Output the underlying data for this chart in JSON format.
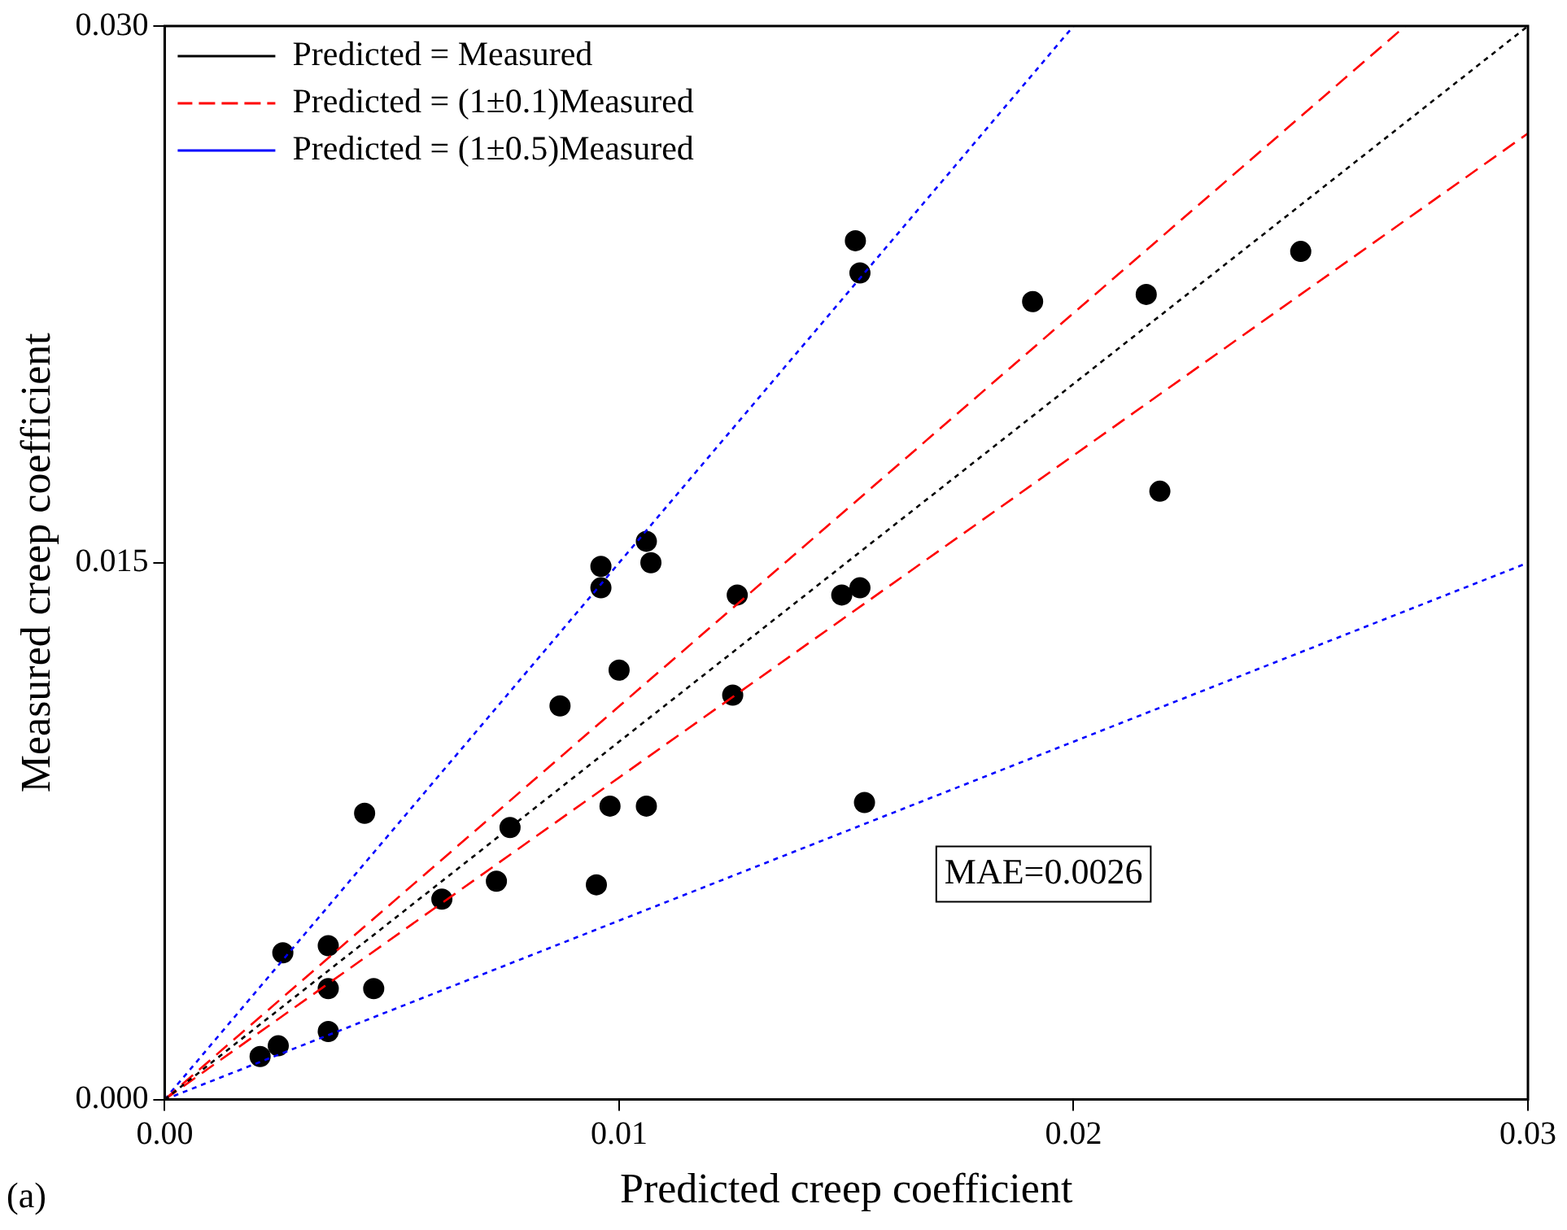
{
  "chart_data": {
    "type": "scatter",
    "xlabel": "Predicted creep coefficient",
    "ylabel": "Measured creep coefficient",
    "xlim": [
      0,
      0.03
    ],
    "ylim": [
      0,
      0.03
    ],
    "xticks": [
      {
        "value": 0,
        "label": "0.00"
      },
      {
        "value": 0.01,
        "label": "0.01"
      },
      {
        "value": 0.02,
        "label": "0.02"
      },
      {
        "value": 0.03,
        "label": "0.03"
      }
    ],
    "yticks": [
      {
        "value": 0,
        "label": "0.000"
      },
      {
        "value": 0.015,
        "label": "0.015"
      },
      {
        "value": 0.03,
        "label": "0.030"
      }
    ],
    "grid": false,
    "legend": "top left",
    "marker": "circle",
    "series": [
      {
        "type": "line",
        "name": "Predicted = Measured",
        "color": "#000000",
        "line_style": "dotted",
        "marker": "none",
        "x": [
          0,
          0.03
        ],
        "values": [
          0,
          0.03
        ]
      },
      {
        "type": "line",
        "name": "Predicted = (1±0.1)Measured",
        "color": "#ff0000",
        "line_style": "dashed",
        "marker": "none",
        "x": [
          0,
          0.0273,
          null,
          0,
          0.03
        ],
        "values": [
          0,
          0.03,
          null,
          0,
          0.027
        ]
      },
      {
        "type": "line",
        "name": "Predicted = (1±0.5)Measured",
        "color": "#0000ff",
        "line_style": "dotted",
        "marker": "none",
        "x": [
          0,
          0.02,
          null,
          0,
          0.03
        ],
        "values": [
          0,
          0.03,
          null,
          0,
          0.015
        ]
      },
      {
        "color": "#000000",
        "x": [
          0.0152,
          0.0153,
          0.0191,
          0.0216,
          0.025,
          0.0219,
          0.0106,
          0.0096,
          0.0096,
          0.0107,
          0.0126,
          0.0149,
          0.0153,
          0.01,
          0.0087,
          0.0125,
          0.0044,
          0.0076,
          0.0098,
          0.0106,
          0.0154,
          0.0073,
          0.0095,
          0.0061,
          0.0026,
          0.0036,
          0.0036,
          0.0046,
          0.0036,
          0.0025,
          0.0021
        ],
        "values": [
          0.024,
          0.0231,
          0.0223,
          0.0225,
          0.0237,
          0.017,
          0.0156,
          0.0149,
          0.0143,
          0.015,
          0.0141,
          0.0141,
          0.0143,
          0.012,
          0.011,
          0.0113,
          0.008,
          0.0076,
          0.0082,
          0.0082,
          0.0083,
          0.0061,
          0.006,
          0.0056,
          0.0041,
          0.0043,
          0.0031,
          0.0031,
          0.0019,
          0.0015,
          0.0012
        ]
      }
    ],
    "annotations": [
      "MAE=0.0026",
      "(a)"
    ]
  }
}
